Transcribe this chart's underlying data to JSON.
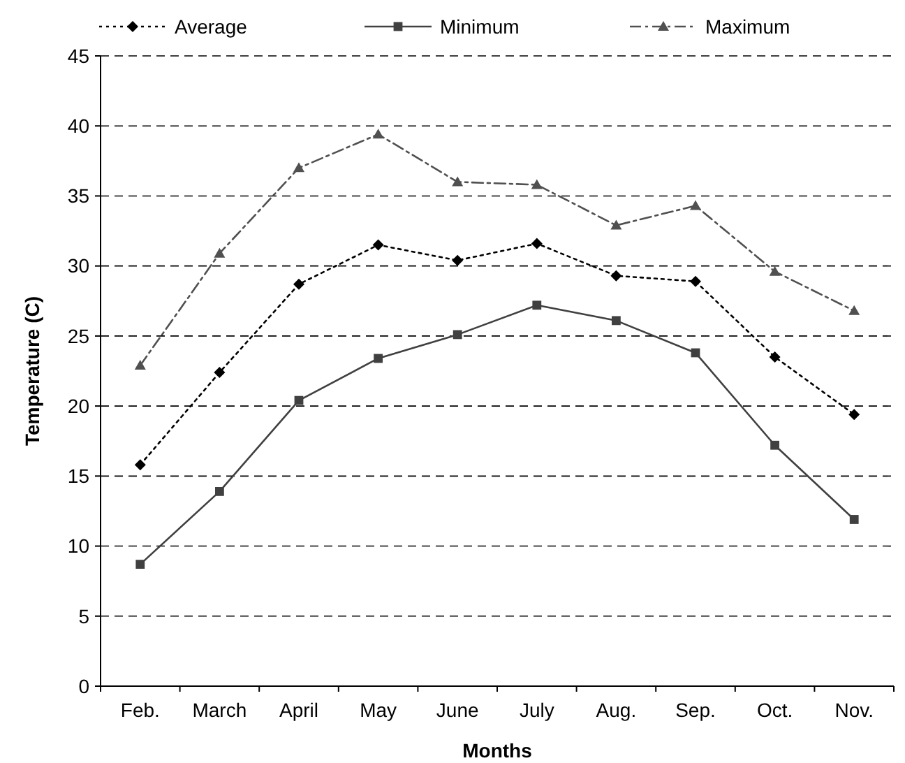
{
  "chart_data": {
    "type": "line",
    "xlabel": "Months",
    "ylabel": "Temperature (C)",
    "categories": [
      "Feb.",
      "March",
      "April",
      "May",
      "June",
      "July",
      "Aug.",
      "Sep.",
      "Oct.",
      "Nov."
    ],
    "series": [
      {
        "name": "Average",
        "color": "#000000",
        "marker": "diamond",
        "line_style": "dotted",
        "values": [
          15.8,
          22.4,
          28.7,
          31.5,
          30.4,
          31.6,
          29.3,
          28.9,
          23.5,
          19.4
        ]
      },
      {
        "name": "Minimum",
        "color": "#404040",
        "marker": "square",
        "line_style": "solid",
        "values": [
          8.7,
          13.9,
          20.4,
          23.4,
          25.1,
          27.2,
          26.1,
          23.8,
          17.2,
          11.9
        ]
      },
      {
        "name": "Maximum",
        "color": "#505050",
        "marker": "triangle",
        "line_style": "dashdot",
        "values": [
          22.9,
          30.9,
          37.0,
          39.4,
          36.0,
          35.8,
          32.9,
          34.3,
          29.6,
          26.8
        ]
      }
    ],
    "ylim": [
      0,
      45
    ],
    "yticks": [
      0,
      5,
      10,
      15,
      20,
      25,
      30,
      35,
      40,
      45
    ],
    "grid": "y",
    "legend": "top"
  }
}
